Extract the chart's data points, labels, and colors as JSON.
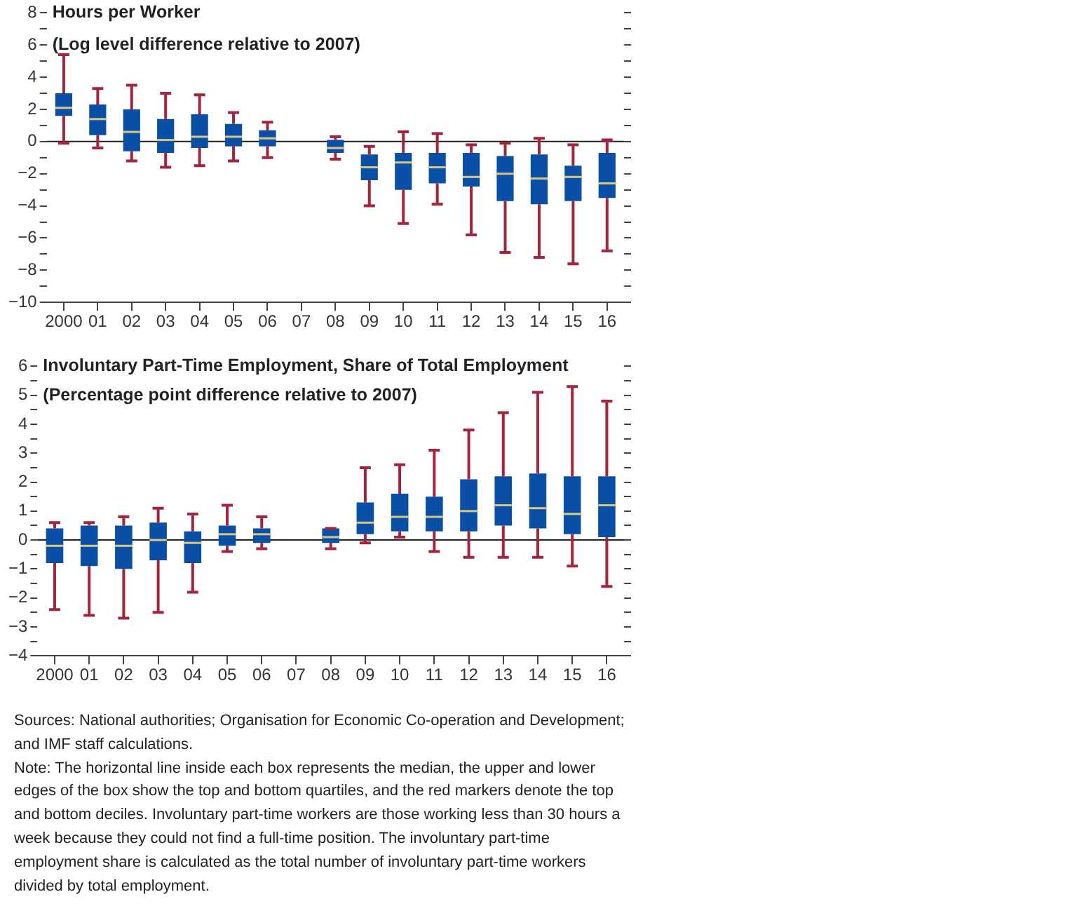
{
  "chart_data": [
    {
      "type": "box",
      "title": "Hours per Worker",
      "subtitle": "(Log level difference relative to 2007)",
      "categories": [
        "2000",
        "01",
        "02",
        "03",
        "04",
        "05",
        "06",
        "07",
        "08",
        "09",
        "10",
        "11",
        "12",
        "13",
        "14",
        "15",
        "16"
      ],
      "series": [
        {
          "color": "#0a4fa6",
          "boxes": [
            {
              "low": -0.1,
              "q1": 1.6,
              "median": 2.1,
              "q3": 3.0,
              "high": 5.4
            },
            {
              "low": -0.4,
              "q1": 0.4,
              "median": 1.4,
              "q3": 2.3,
              "high": 3.3
            },
            {
              "low": -1.2,
              "q1": -0.6,
              "median": 0.6,
              "q3": 2.0,
              "high": 3.5
            },
            {
              "low": -1.6,
              "q1": -0.7,
              "median": 0.1,
              "q3": 1.4,
              "high": 3.0
            },
            {
              "low": -1.5,
              "q1": -0.4,
              "median": 0.3,
              "q3": 1.7,
              "high": 2.9
            },
            {
              "low": -1.2,
              "q1": -0.3,
              "median": 0.3,
              "q3": 1.1,
              "high": 1.8
            },
            {
              "low": -1.0,
              "q1": -0.3,
              "median": 0.2,
              "q3": 0.7,
              "high": 1.2
            },
            null,
            {
              "low": -1.1,
              "q1": -0.7,
              "median": -0.4,
              "q3": 0.1,
              "high": 0.3
            },
            {
              "low": -4.0,
              "q1": -2.4,
              "median": -1.6,
              "q3": -0.8,
              "high": -0.3
            },
            {
              "low": -5.1,
              "q1": -3.0,
              "median": -1.3,
              "q3": -0.7,
              "high": 0.6
            },
            {
              "low": -3.9,
              "q1": -2.6,
              "median": -1.6,
              "q3": -0.7,
              "high": 0.5
            },
            {
              "low": -5.8,
              "q1": -2.8,
              "median": -2.2,
              "q3": -0.7,
              "high": -0.2
            },
            {
              "low": -6.9,
              "q1": -3.7,
              "median": -2.0,
              "q3": -0.9,
              "high": -0.1
            },
            {
              "low": -7.2,
              "q1": -3.9,
              "median": -2.3,
              "q3": -0.8,
              "high": 0.2
            },
            {
              "low": -7.6,
              "q1": -3.7,
              "median": -2.2,
              "q3": -1.5,
              "high": -0.2
            },
            {
              "low": -6.8,
              "q1": -3.5,
              "median": -2.6,
              "q3": -0.7,
              "high": 0.1
            }
          ]
        }
      ],
      "ylim": [
        -10,
        8
      ],
      "yticks": [
        -10,
        {
          "value": -9,
          "label": null
        },
        -8,
        {
          "value": -7,
          "label": null
        },
        -6,
        {
          "value": -5,
          "label": null
        },
        -4,
        {
          "value": -3,
          "label": null
        },
        -2,
        {
          "value": -1,
          "label": null
        },
        0,
        {
          "value": 1,
          "label": null
        },
        2,
        {
          "value": 3,
          "label": null
        },
        4,
        {
          "value": 5,
          "label": null
        },
        6,
        {
          "value": 7,
          "label": null
        },
        8
      ],
      "ref_lines": [
        {
          "axis": "y",
          "value": 0,
          "color": "#222222"
        }
      ]
    },
    {
      "type": "box",
      "title": "Involuntary Part-Time Employment, Share of Total Employment",
      "subtitle": "(Percentage point difference relative to 2007)",
      "categories": [
        "2000",
        "01",
        "02",
        "03",
        "04",
        "05",
        "06",
        "07",
        "08",
        "09",
        "10",
        "11",
        "12",
        "13",
        "14",
        "15",
        "16"
      ],
      "series": [
        {
          "color": "#0a4fa6",
          "boxes": [
            {
              "low": -2.4,
              "q1": -0.8,
              "median": -0.2,
              "q3": 0.4,
              "high": 0.6
            },
            {
              "low": -2.6,
              "q1": -0.9,
              "median": -0.2,
              "q3": 0.5,
              "high": 0.6
            },
            {
              "low": -2.7,
              "q1": -1.0,
              "median": -0.2,
              "q3": 0.5,
              "high": 0.8
            },
            {
              "low": -2.5,
              "q1": -0.7,
              "median": 0.0,
              "q3": 0.6,
              "high": 1.1
            },
            {
              "low": -1.8,
              "q1": -0.8,
              "median": -0.1,
              "q3": 0.3,
              "high": 0.9
            },
            {
              "low": -0.4,
              "q1": -0.2,
              "median": 0.2,
              "q3": 0.5,
              "high": 1.2
            },
            {
              "low": -0.3,
              "q1": -0.1,
              "median": 0.2,
              "q3": 0.4,
              "high": 0.8
            },
            null,
            {
              "low": -0.3,
              "q1": -0.1,
              "median": 0.1,
              "q3": 0.4,
              "high": 0.4
            },
            {
              "low": -0.1,
              "q1": 0.2,
              "median": 0.6,
              "q3": 1.3,
              "high": 2.5
            },
            {
              "low": 0.1,
              "q1": 0.3,
              "median": 0.8,
              "q3": 1.6,
              "high": 2.6
            },
            {
              "low": -0.4,
              "q1": 0.3,
              "median": 0.8,
              "q3": 1.5,
              "high": 3.1
            },
            {
              "low": -0.6,
              "q1": 0.3,
              "median": 1.0,
              "q3": 2.1,
              "high": 3.8
            },
            {
              "low": -0.6,
              "q1": 0.5,
              "median": 1.2,
              "q3": 2.2,
              "high": 4.4
            },
            {
              "low": -0.6,
              "q1": 0.4,
              "median": 1.1,
              "q3": 2.3,
              "high": 5.1
            },
            {
              "low": -0.9,
              "q1": 0.2,
              "median": 0.9,
              "q3": 2.2,
              "high": 5.3
            },
            {
              "low": -1.6,
              "q1": 0.1,
              "median": 1.2,
              "q3": 2.2,
              "high": 4.8
            }
          ]
        }
      ],
      "ylim": [
        -4,
        6
      ],
      "yticks": [
        -4,
        {
          "value": -3.5,
          "label": null
        },
        -3,
        {
          "value": -2.5,
          "label": null
        },
        -2,
        {
          "value": -1.5,
          "label": null
        },
        -1,
        {
          "value": -0.5,
          "label": null
        },
        0,
        {
          "value": 0.5,
          "label": null
        },
        1,
        {
          "value": 1.5,
          "label": null
        },
        2,
        {
          "value": 2.5,
          "label": null
        },
        3,
        {
          "value": 3.5,
          "label": null
        },
        4,
        {
          "value": 4.5,
          "label": null
        },
        5,
        {
          "value": 5.5,
          "label": null
        },
        6
      ],
      "ref_lines": [
        {
          "axis": "y",
          "value": 0,
          "color": "#222222"
        }
      ],
      "annotations": [
        "Sources: National authorities; Organisation for Economic Co-operation and Development; and IMF staff calculations.",
        "Note: The horizontal line inside each box represents the median, the upper and lower edges of the box show the top and bottom quartiles, and the red markers denote the top and bottom deciles. Involuntary part-time workers are those working less than 30 hours a week because they could not find a full-time position. The involuntary part-time employment share is calculated as the total number of involuntary part-time workers divided by total employment."
      ]
    }
  ]
}
